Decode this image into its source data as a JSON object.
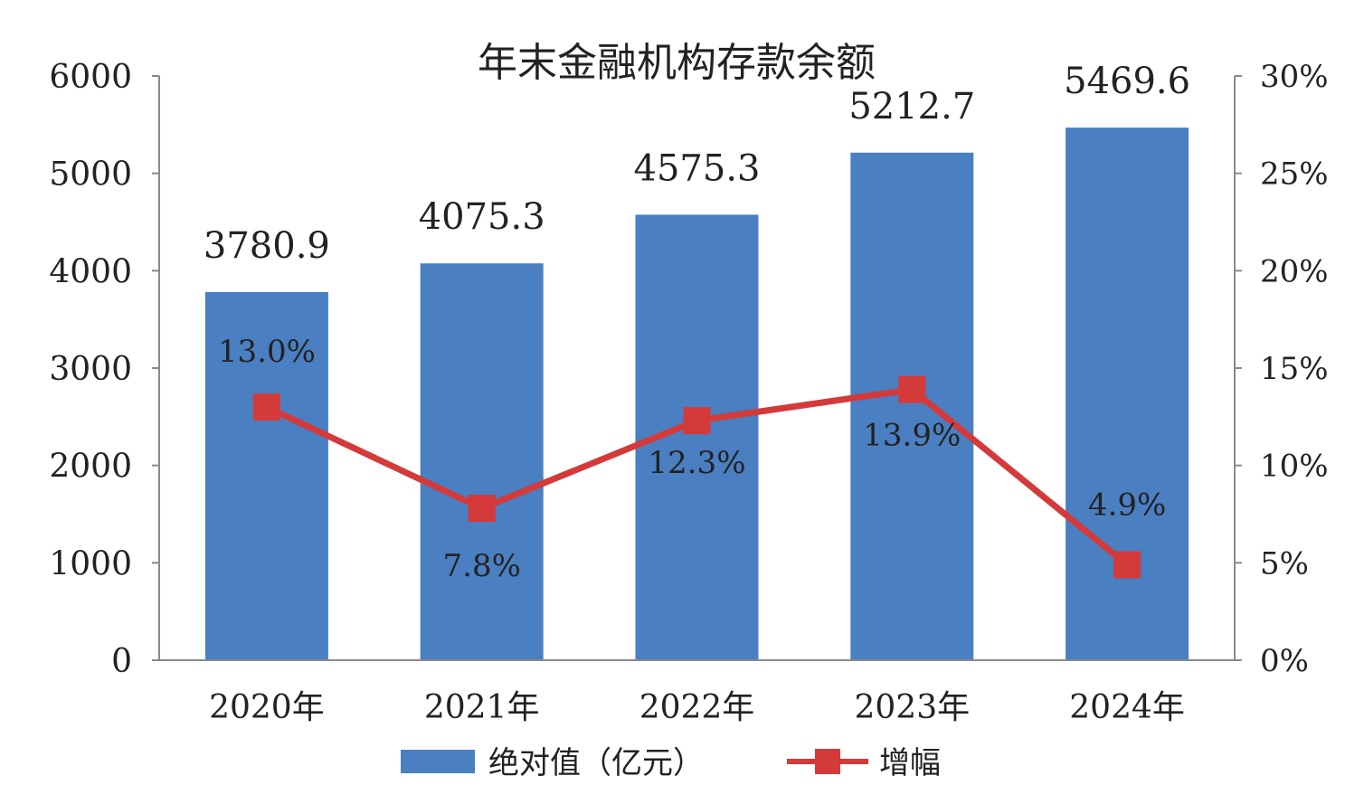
{
  "chart_data": {
    "type": "bar",
    "title": "年末金融机构存款余额",
    "categories": [
      "2020年",
      "2021年",
      "2022年",
      "2023年",
      "2024年"
    ],
    "series": [
      {
        "name": "绝对值（亿元）",
        "type": "bar",
        "axis": "left",
        "color": "#4a7fc1",
        "values": [
          3780.9,
          4075.3,
          4575.3,
          5212.7,
          5469.6
        ],
        "labels": [
          "3780.9",
          "4075.3",
          "4575.3",
          "5212.7",
          "5469.6"
        ]
      },
      {
        "name": "增幅",
        "type": "line",
        "axis": "right",
        "color": "#d43a3a",
        "values": [
          13.0,
          7.8,
          12.3,
          13.9,
          4.9
        ],
        "labels": [
          "13.0%",
          "7.8%",
          "12.3%",
          "13.9%",
          "4.9%"
        ]
      }
    ],
    "y_left": {
      "ylim": [
        0,
        6000
      ],
      "ticks": [
        "0",
        "1000",
        "2000",
        "3000",
        "4000",
        "5000",
        "6000"
      ]
    },
    "y_right": {
      "ylim": [
        0,
        30
      ],
      "ticks": [
        "0%",
        "5%",
        "10%",
        "15%",
        "20%",
        "25%",
        "30%"
      ]
    },
    "grid": false,
    "legend": "bottom"
  }
}
